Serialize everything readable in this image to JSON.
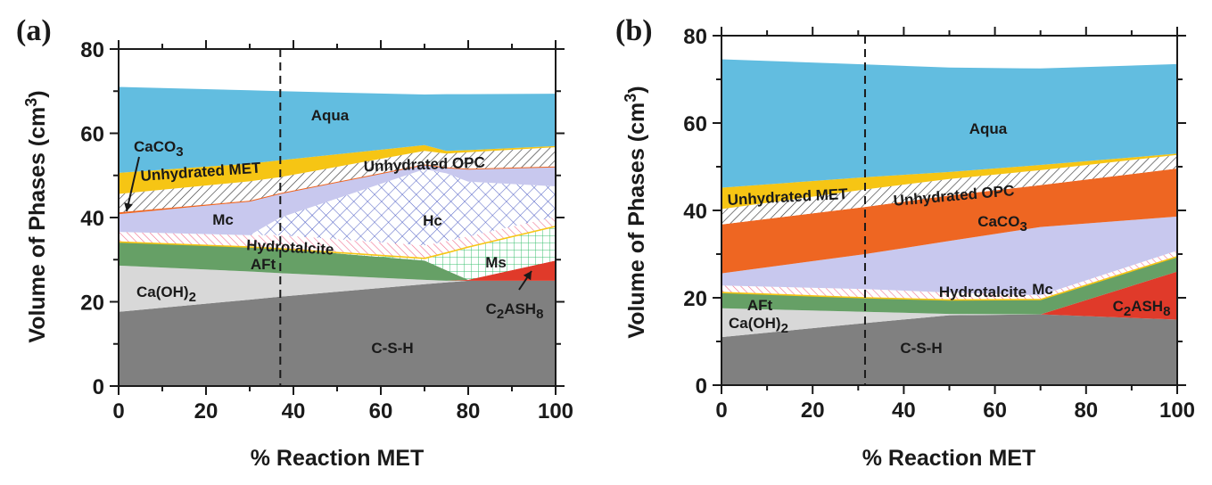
{
  "figure": {
    "panels": [
      "(a)",
      "(b)"
    ]
  },
  "chart_data": [
    {
      "type": "area",
      "panel_label": "(a)",
      "title": "",
      "xlabel": "% Reaction MET",
      "ylabel": "Volume of Phases (cm3)",
      "ylabel_main": "Volume of Phases (cm",
      "ylabel_sup": "3",
      "ylabel_close": ")",
      "xlim": [
        0,
        100
      ],
      "ylim": [
        0,
        80
      ],
      "xticks": [
        "0",
        "20",
        "40",
        "60",
        "80",
        "100"
      ],
      "yticks": [
        "0",
        "20",
        "40",
        "60",
        "80"
      ],
      "dashed_line_x": 37,
      "x": [
        0,
        30,
        37,
        70,
        75,
        80,
        100
      ],
      "boundaries_note": "cumulative upper boundary of each phase (cm3), stacked from bottom",
      "series": [
        {
          "name": "C-S-H",
          "color": "#808080",
          "pattern": "solid",
          "top": [
            17.6,
            20.5,
            21.2,
            24.2,
            24.6,
            25,
            25
          ]
        },
        {
          "name": "Ca(OH)2",
          "color": "#d8d8d8",
          "pattern": "solid",
          "top": [
            28.6,
            27.2,
            26.8,
            25.2,
            25,
            25,
            25
          ]
        },
        {
          "name": "C2ASH8",
          "color": "#e03a2a",
          "pattern": "solid",
          "top": [
            28.6,
            27.2,
            26.8,
            25.2,
            25,
            25.2,
            29.8
          ]
        },
        {
          "name": "AFt",
          "color": "#66a066",
          "pattern": "solid",
          "top": [
            34.2,
            33,
            32.6,
            29.8,
            27.5,
            25.2,
            29.8
          ]
        },
        {
          "name": "Ms",
          "color": "#2fbf5a",
          "pattern": "grid",
          "top": [
            34.2,
            33,
            32.6,
            30.3,
            31.6,
            33,
            37.9
          ]
        },
        {
          "name": "Hydrotalcite",
          "color": "#f06080",
          "pattern": "hatch",
          "top": [
            36.6,
            35.8,
            35.8,
            33.4,
            34.4,
            35.5,
            40.2
          ]
        },
        {
          "name": "Hc",
          "color": "#5060c8",
          "pattern": "crosshatch",
          "top": [
            36.6,
            35.8,
            40.0,
            51.5,
            50.5,
            48.5,
            47.4
          ]
        },
        {
          "name": "Mc",
          "color": "#c8c8ee",
          "pattern": "solid",
          "top": [
            40.8,
            43.8,
            45.6,
            52.5,
            51.8,
            51.5,
            52.0
          ]
        },
        {
          "name": "CaCO3",
          "color": "#ee6622",
          "pattern": "solid",
          "top": [
            41.2,
            44.0,
            45.8,
            52.6,
            51.9,
            51.6,
            52.1
          ]
        },
        {
          "name": "Unhydrated OPC",
          "color": "#333333",
          "pattern": "hatch",
          "top": [
            45.6,
            48.6,
            49.6,
            55.8,
            55.2,
            55.5,
            56.7
          ]
        },
        {
          "name": "Unhydrated MET",
          "color": "#f6c514",
          "pattern": "solid",
          "top": [
            50.6,
            52.8,
            53.6,
            57.2,
            55.8,
            56,
            57.0
          ]
        },
        {
          "name": "Aqua",
          "color": "#62bde0",
          "pattern": "solid",
          "top": [
            71.0,
            70.2,
            70.0,
            69.2,
            69.3,
            69.3,
            69.4
          ]
        }
      ],
      "annotations": [
        {
          "text": "Aqua",
          "sub": ""
        },
        {
          "text": "CaCO",
          "sub": "3"
        },
        {
          "text": "Unhydrated MET",
          "sub": ""
        },
        {
          "text": "Unhydrated OPC",
          "sub": ""
        },
        {
          "text": "Mc",
          "sub": ""
        },
        {
          "text": "Hc",
          "sub": ""
        },
        {
          "text": "Hydrotalcite",
          "sub": ""
        },
        {
          "text": "AFt",
          "sub": ""
        },
        {
          "text": "Ca(OH)",
          "sub": "2"
        },
        {
          "text": "Ms",
          "sub": ""
        },
        {
          "text": "C",
          "sub": "2",
          "text2": "ASH",
          "sub2": "8"
        },
        {
          "text": "C-S-H",
          "sub": ""
        }
      ]
    },
    {
      "type": "area",
      "panel_label": "(b)",
      "title": "",
      "xlabel": "% Reaction MET",
      "ylabel": "Volume of Phases (cm3)",
      "ylabel_main": "Volume of Phases (cm",
      "ylabel_sup": "3",
      "ylabel_close": ")",
      "xlim": [
        0,
        100
      ],
      "ylim": [
        0,
        80
      ],
      "xticks": [
        "0",
        "20",
        "40",
        "60",
        "80",
        "100"
      ],
      "yticks": [
        "0",
        "20",
        "40",
        "60",
        "80"
      ],
      "dashed_line_x": 31.5,
      "x": [
        0,
        31.5,
        50,
        70,
        100
      ],
      "boundaries_note": "cumulative upper boundary of each phase (cm3), stacked from bottom",
      "series": [
        {
          "name": "C-S-H",
          "color": "#808080",
          "pattern": "solid",
          "top": [
            11.0,
            14.2,
            16.0,
            16.2,
            15.0
          ]
        },
        {
          "name": "Ca(OH)2",
          "color": "#d8d8d8",
          "pattern": "solid",
          "top": [
            17.6,
            16.8,
            16.3,
            16.2,
            15.0
          ]
        },
        {
          "name": "C2ASH8",
          "color": "#e03a2a",
          "pattern": "solid",
          "top": [
            17.6,
            16.8,
            16.3,
            16.2,
            26.0
          ]
        },
        {
          "name": "AFt",
          "color": "#66a066",
          "pattern": "solid",
          "top": [
            21.2,
            20.0,
            19.5,
            19.6,
            29.4
          ]
        },
        {
          "name": "Hydrotalcite",
          "color": "#f06080",
          "pattern": "hatch",
          "top": [
            22.8,
            22.0,
            21.2,
            20.6,
            30.8
          ]
        },
        {
          "name": "Mc",
          "color": "#c8c8ee",
          "pattern": "solid",
          "top": [
            25.6,
            30.0,
            33.0,
            36.2,
            38.6
          ]
        },
        {
          "name": "CaCO3",
          "color": "#ee6622",
          "pattern": "solid",
          "top": [
            36.8,
            40.8,
            43.4,
            45.8,
            49.6
          ]
        },
        {
          "name": "Unhydrated OPC",
          "color": "#333333",
          "pattern": "hatch",
          "top": [
            40.3,
            44.8,
            47.2,
            49.2,
            52.7
          ]
        },
        {
          "name": "Unhydrated MET",
          "color": "#f6c514",
          "pattern": "solid",
          "top": [
            45.2,
            47.6,
            48.8,
            50.4,
            53.0
          ]
        },
        {
          "name": "Aqua",
          "color": "#62bde0",
          "pattern": "solid",
          "top": [
            74.6,
            73.4,
            72.7,
            72.5,
            73.5
          ]
        }
      ],
      "annotations": [
        {
          "text": "Aqua",
          "sub": ""
        },
        {
          "text": "Unhydrated MET",
          "sub": ""
        },
        {
          "text": "Unhydrated OPC",
          "sub": ""
        },
        {
          "text": "CaCO",
          "sub": "3"
        },
        {
          "text": "Mc",
          "sub": ""
        },
        {
          "text": "Hydrotalcite",
          "sub": ""
        },
        {
          "text": "AFt",
          "sub": ""
        },
        {
          "text": "Ca(OH)",
          "sub": "2"
        },
        {
          "text": "C",
          "sub": "2",
          "text2": "ASH",
          "sub2": "8"
        },
        {
          "text": "C-S-H",
          "sub": ""
        }
      ]
    }
  ]
}
